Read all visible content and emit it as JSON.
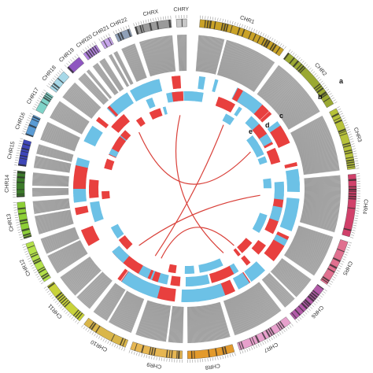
{
  "chromosomes": [
    {
      "id": "CHR1",
      "label": "CHR1",
      "color": "#c9a227"
    },
    {
      "id": "CHR2",
      "label": "CHR2",
      "color": "#9aa832"
    },
    {
      "id": "CHR3",
      "label": "CHR3",
      "color": "#b7c23a"
    },
    {
      "id": "CHR4",
      "label": "CHR4",
      "color": "#d0406a"
    },
    {
      "id": "CHR5",
      "label": "CHR5",
      "color": "#e0708f"
    },
    {
      "id": "CHR6",
      "label": "CHR6",
      "color": "#b25ba8"
    },
    {
      "id": "CHR7",
      "label": "CHR7",
      "color": "#e7a0cc"
    },
    {
      "id": "CHR8",
      "label": "CHR8",
      "color": "#e39a2c"
    },
    {
      "id": "CHR9",
      "label": "CHR9",
      "color": "#e6b652"
    },
    {
      "id": "CHR10",
      "label": "CHR10",
      "color": "#d9b64a"
    },
    {
      "id": "CHR11",
      "label": "CHR11",
      "color": "#c8d23a"
    },
    {
      "id": "CHR12",
      "label": "CHR12",
      "color": "#b3e04a"
    },
    {
      "id": "CHR13",
      "label": "CHR13",
      "color": "#8dcf36"
    },
    {
      "id": "CHR14",
      "label": "CHR14",
      "color": "#3c7a2a"
    },
    {
      "id": "CHR15",
      "label": "CHR15",
      "color": "#3e46b8"
    },
    {
      "id": "CHR16",
      "label": "CHR16",
      "color": "#5a9bd4"
    },
    {
      "id": "CHR17",
      "label": "CHR17",
      "color": "#7fd3c8"
    },
    {
      "id": "CHR18",
      "label": "CHR18",
      "color": "#a7d8e8"
    },
    {
      "id": "CHR19",
      "label": "CHR19",
      "color": "#8e56c0"
    },
    {
      "id": "CHR20",
      "label": "CHR20",
      "color": "#b283de"
    },
    {
      "id": "CHR21",
      "label": "CHR21",
      "color": "#c7a6ea"
    },
    {
      "id": "CHR22",
      "label": "CHR22",
      "color": "#8fa0b8"
    },
    {
      "id": "CHRX",
      "label": "CHRX",
      "color": "#9a9a9a"
    },
    {
      "id": "CHRY",
      "label": "CHRY",
      "color": "#c8c8c8"
    }
  ],
  "track_labels": [
    "a",
    "b",
    "c",
    "d",
    "e"
  ],
  "colors": {
    "red_track": "#e8403e",
    "blue_track": "#6cc1e6",
    "gray_track": "#8f8f8f",
    "link": "#d9413a"
  }
}
